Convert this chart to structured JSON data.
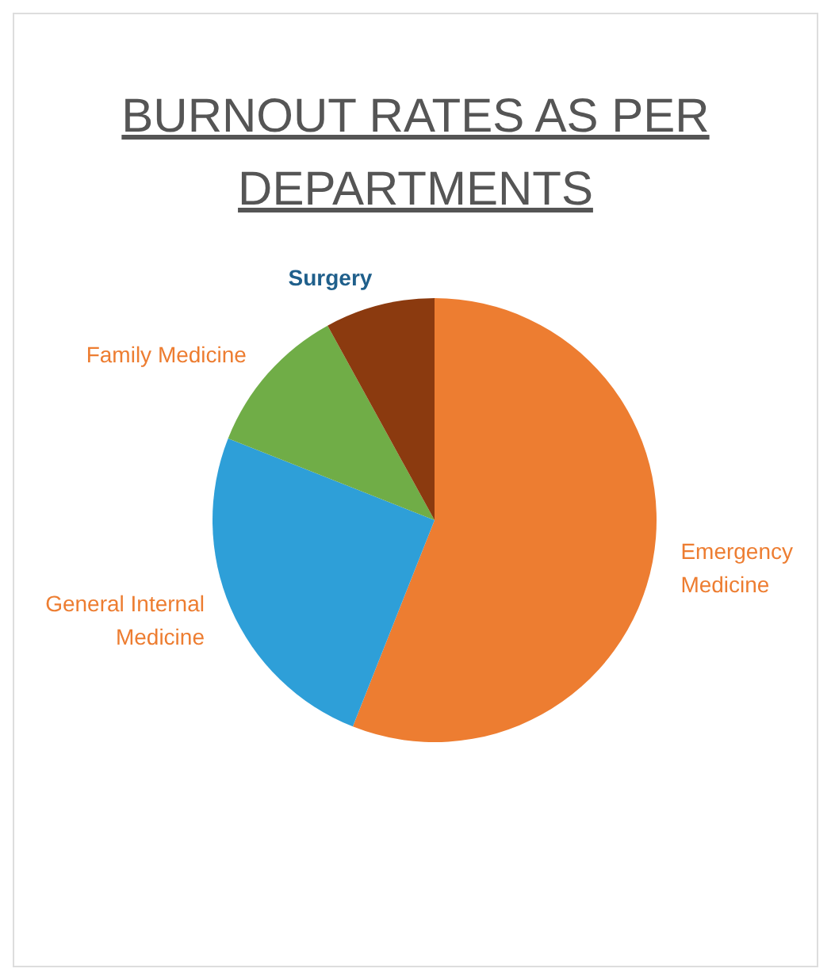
{
  "chart_data": {
    "type": "pie",
    "title": "BURNOUT RATES AS PER DEPARTMENTS",
    "categories": [
      "Emergency Medicine",
      "General Internal Medicine",
      "Family Medicine",
      "Surgery"
    ],
    "values": [
      56,
      25,
      11,
      8
    ],
    "colors": [
      "#ed7d31",
      "#2e9fd8",
      "#70ad47",
      "#8b3a0f"
    ]
  }
}
